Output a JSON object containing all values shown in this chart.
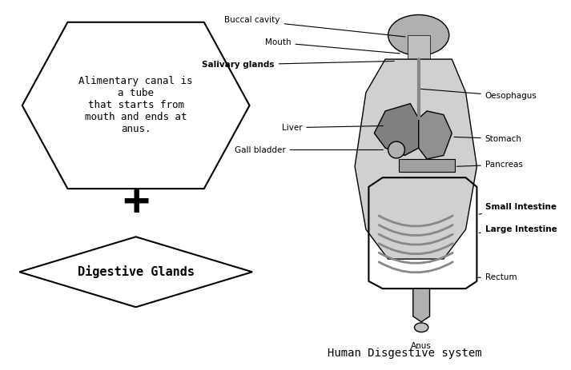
{
  "background_color": "#ffffff",
  "hexagon_text": "Alimentary canal is\na tube\nthat starts from\nmouth and ends at\nanus.",
  "plus_text": "+",
  "diamond_text": "Digestive Glands",
  "diagram_title": "Human Disgestive system",
  "labels_left": [
    "Buccal cavity",
    "Mouth",
    "Salivary glands",
    "Liver",
    "Gall bladder"
  ],
  "labels_right": [
    "Oesophagus",
    "Stomach",
    "Pancreas",
    "Small Intestine",
    "Large Intestine",
    "Rectum"
  ],
  "label_anus": "Anus"
}
